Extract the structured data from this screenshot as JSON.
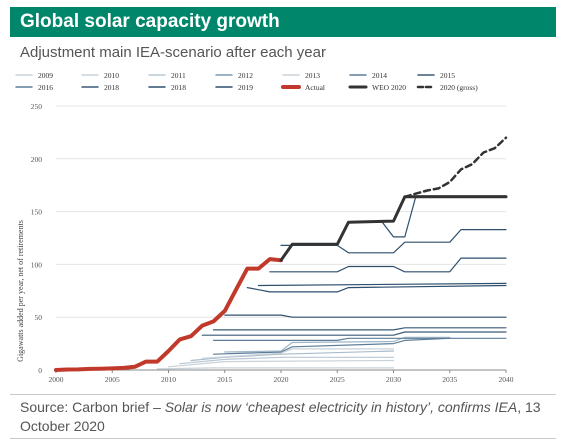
{
  "header": {
    "title": "Global solar capacity growth",
    "subtitle": "Adjustment main IEA-scenario after each year"
  },
  "source": {
    "prefix": "Source: Carbon brief – ",
    "article": "Solar is now ‘cheapest electricity in history’, confirms IEA",
    "suffix": ", 13 October 2020"
  },
  "colors": {
    "title_bg": "#00866b",
    "actual": "#c0392b",
    "weo": "#333333",
    "dark_blue": "#2e4f6e",
    "mid_blue": "#5b7d99",
    "light_blue": "#9fb6c8",
    "grey": "#c8d2da"
  },
  "chart_data": {
    "type": "line",
    "ylabel": "Gigawatts added per year, net of retirements",
    "xlim": [
      2000,
      2040
    ],
    "ylim": [
      0,
      250
    ],
    "x_ticks": [
      2000,
      2005,
      2010,
      2015,
      2020,
      2025,
      2030,
      2035,
      2040
    ],
    "y_ticks": [
      0,
      50,
      100,
      150,
      200,
      250
    ],
    "legend_position": "top",
    "series": [
      {
        "name": "2009",
        "color": "#c8d2da",
        "dash": "",
        "width": 1.2,
        "points": [
          [
            2009,
            1
          ],
          [
            2014,
            2
          ],
          [
            2030,
            2
          ]
        ]
      },
      {
        "name": "2010",
        "color": "#c8d2da",
        "dash": "",
        "width": 1.2,
        "points": [
          [
            2010,
            3
          ],
          [
            2015,
            8
          ],
          [
            2030,
            9
          ]
        ]
      },
      {
        "name": "2011",
        "color": "#b9c8d4",
        "dash": "",
        "width": 1.2,
        "points": [
          [
            2011,
            6
          ],
          [
            2015,
            10
          ],
          [
            2020,
            12
          ],
          [
            2030,
            12
          ]
        ]
      },
      {
        "name": "2012",
        "color": "#a9bccb",
        "dash": "",
        "width": 1.2,
        "points": [
          [
            2012,
            9
          ],
          [
            2015,
            12
          ],
          [
            2020,
            15
          ],
          [
            2030,
            18
          ]
        ]
      },
      {
        "name": "2013",
        "color": "#c8d2da",
        "dash": "",
        "width": 1.2,
        "points": [
          [
            2013,
            11
          ],
          [
            2020,
            16
          ],
          [
            2021,
            20
          ],
          [
            2030,
            20
          ]
        ]
      },
      {
        "name": "2014",
        "color": "#5b7d99",
        "dash": "",
        "width": 1.2,
        "points": [
          [
            2014,
            15
          ],
          [
            2020,
            17
          ],
          [
            2021,
            22
          ],
          [
            2030,
            25
          ],
          [
            2031,
            28
          ],
          [
            2035,
            30
          ]
        ]
      },
      {
        "name": "2015",
        "color": "#9fb6c8",
        "dash": "",
        "width": 1.2,
        "points": [
          [
            2015,
            17
          ],
          [
            2020,
            18
          ],
          [
            2021,
            26
          ],
          [
            2030,
            27
          ],
          [
            2031,
            31
          ],
          [
            2035,
            31
          ]
        ]
      },
      {
        "name": "2016",
        "color": "#5b7d99",
        "dash": "",
        "width": 1.2,
        "points": [
          [
            2014,
            28
          ],
          [
            2025,
            28
          ],
          [
            2026,
            30
          ],
          [
            2040,
            30
          ]
        ]
      },
      {
        "name": "2018",
        "color": "#3a5b78",
        "dash": "",
        "width": 1.2,
        "points": [
          [
            2013,
            33
          ],
          [
            2030,
            33
          ],
          [
            2031,
            36
          ],
          [
            2040,
            36
          ]
        ]
      },
      {
        "name": "2018",
        "color": "#3a5b78",
        "dash": "",
        "width": 1.2,
        "points": [
          [
            2014,
            38
          ],
          [
            2030,
            38
          ],
          [
            2031,
            40
          ],
          [
            2040,
            40
          ]
        ]
      },
      {
        "name": "2019",
        "color": "#2e4f6e",
        "dash": "",
        "width": 1.2,
        "points": [
          [
            2015,
            52
          ],
          [
            2020,
            52
          ],
          [
            2021,
            50
          ],
          [
            2040,
            50
          ]
        ]
      },
      {
        "name": "",
        "color": "#2e4f6e",
        "dash": "",
        "width": 1.2,
        "points": [
          [
            2018,
            80
          ],
          [
            2040,
            82
          ]
        ]
      },
      {
        "name": "",
        "color": "#2e4f6e",
        "dash": "",
        "width": 1.2,
        "points": [
          [
            2017,
            78
          ],
          [
            2018,
            76
          ],
          [
            2019,
            74
          ],
          [
            2025,
            74
          ],
          [
            2026,
            78
          ],
          [
            2040,
            80
          ]
        ]
      },
      {
        "name": "",
        "color": "#2e4f6e",
        "dash": "",
        "width": 1.2,
        "points": [
          [
            2019,
            93
          ],
          [
            2025,
            93
          ],
          [
            2026,
            98
          ],
          [
            2030,
            98
          ],
          [
            2031,
            93
          ],
          [
            2035,
            93
          ],
          [
            2036,
            106
          ],
          [
            2040,
            106
          ]
        ]
      },
      {
        "name": "",
        "color": "#2e4f6e",
        "dash": "",
        "width": 1.2,
        "points": [
          [
            2020,
            118
          ],
          [
            2025,
            118
          ],
          [
            2026,
            111
          ],
          [
            2030,
            111
          ],
          [
            2031,
            121
          ],
          [
            2035,
            121
          ],
          [
            2036,
            133
          ],
          [
            2040,
            133
          ]
        ]
      },
      {
        "name": "",
        "color": "#2e4f6e",
        "dash": "",
        "width": 1.2,
        "points": [
          [
            2025,
            119
          ],
          [
            2026,
            140
          ],
          [
            2029,
            140
          ],
          [
            2030,
            126
          ],
          [
            2031,
            126
          ],
          [
            2032,
            165
          ],
          [
            2040,
            165
          ]
        ]
      },
      {
        "name": "Actual",
        "color": "#c0392b",
        "dash": "",
        "width": 4,
        "points": [
          [
            2000,
            0
          ],
          [
            2001,
            0.5
          ],
          [
            2002,
            0.6
          ],
          [
            2003,
            1
          ],
          [
            2004,
            1.2
          ],
          [
            2005,
            1.5
          ],
          [
            2006,
            2
          ],
          [
            2007,
            3
          ],
          [
            2008,
            8
          ],
          [
            2009,
            8
          ],
          [
            2010,
            18
          ],
          [
            2011,
            29
          ],
          [
            2012,
            32
          ],
          [
            2013,
            42
          ],
          [
            2014,
            46
          ],
          [
            2015,
            56
          ],
          [
            2016,
            76
          ],
          [
            2017,
            96
          ],
          [
            2018,
            96
          ],
          [
            2019,
            105
          ],
          [
            2020,
            104
          ]
        ]
      },
      {
        "name": "WEO 2020",
        "color": "#333333",
        "dash": "",
        "width": 3,
        "points": [
          [
            2020,
            104
          ],
          [
            2021,
            119
          ],
          [
            2025,
            119
          ],
          [
            2026,
            140
          ],
          [
            2030,
            141
          ],
          [
            2031,
            164
          ],
          [
            2040,
            164
          ]
        ]
      },
      {
        "name": "2020 (gross)",
        "color": "#333333",
        "dash": "6,4",
        "width": 2.5,
        "points": [
          [
            2031,
            164
          ],
          [
            2032,
            167
          ],
          [
            2033,
            170
          ],
          [
            2034,
            172
          ],
          [
            2035,
            178
          ],
          [
            2036,
            190
          ],
          [
            2037,
            195
          ],
          [
            2038,
            206
          ],
          [
            2039,
            210
          ],
          [
            2040,
            220
          ]
        ]
      }
    ],
    "legend": [
      {
        "label": "2009",
        "color": "#c8d2da",
        "dash": "",
        "width": 1.5
      },
      {
        "label": "2010",
        "color": "#c8d2da",
        "dash": "",
        "width": 1.5
      },
      {
        "label": "2011",
        "color": "#b9c8d4",
        "dash": "",
        "width": 1.5
      },
      {
        "label": "2012",
        "color": "#7f9bb2",
        "dash": "",
        "width": 1.5
      },
      {
        "label": "2013",
        "color": "#c8d2da",
        "dash": "",
        "width": 1.5
      },
      {
        "label": "2014",
        "color": "#5b7d99",
        "dash": "",
        "width": 1.5
      },
      {
        "label": "2015",
        "color": "#3a5b78",
        "dash": "",
        "width": 1.5
      },
      {
        "label": "2016",
        "color": "#5b7d99",
        "dash": "",
        "width": 1.5
      },
      {
        "label": "2018",
        "color": "#3a5b78",
        "dash": "",
        "width": 1.5
      },
      {
        "label": "2018",
        "color": "#2e4f6e",
        "dash": "",
        "width": 1.5
      },
      {
        "label": "2019",
        "color": "#2e4f6e",
        "dash": "",
        "width": 1.5
      },
      {
        "label": "Actual",
        "color": "#c0392b",
        "dash": "",
        "width": 4
      },
      {
        "label": "WEO 2020",
        "color": "#333333",
        "dash": "",
        "width": 3
      },
      {
        "label": "2020 (gross)",
        "color": "#333333",
        "dash": "5,3",
        "width": 2.5
      }
    ]
  }
}
